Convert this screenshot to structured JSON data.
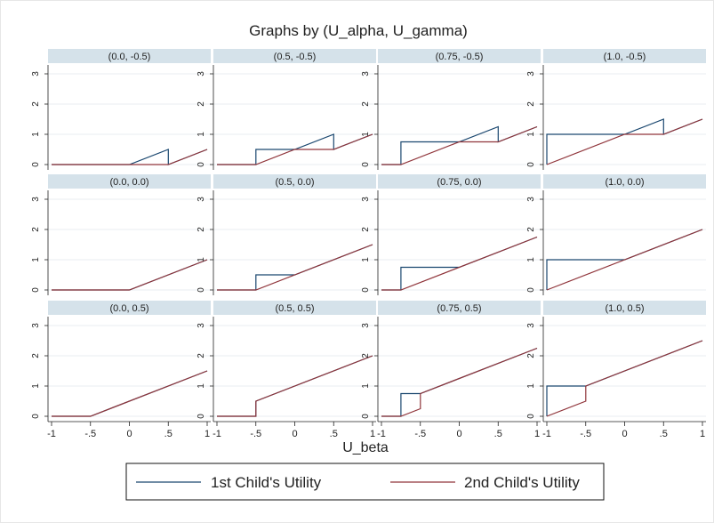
{
  "chart_data": {
    "type": "line",
    "title": "Graphs by (U_alpha, U_gamma)",
    "xlabel": "U_beta",
    "ylabel": "",
    "xlim": [
      -1,
      1
    ],
    "ylim": [
      0,
      3
    ],
    "x_ticks": [
      "-1",
      "-.5",
      "0",
      ".5",
      "1"
    ],
    "y_ticks": [
      "0",
      "1",
      "2",
      "3"
    ],
    "grid": true,
    "legend_position": "bottom",
    "colors": {
      "series1": "#1a476f",
      "series2": "#90353b",
      "strip": "#d5e2ea"
    },
    "series_names": [
      "1st Child's Utility",
      "2nd Child's Utility"
    ],
    "panels": [
      {
        "label": "(0.0, -0.5)",
        "series": [
          {
            "name": "1st Child's Utility",
            "points": [
              [
                -1,
                0
              ],
              [
                0,
                0
              ],
              [
                0.5,
                0.5
              ],
              [
                0.5,
                0
              ],
              [
                1,
                0.5
              ]
            ]
          },
          {
            "name": "2nd Child's Utility",
            "points": [
              [
                -1,
                0
              ],
              [
                0.5,
                0
              ],
              [
                1,
                0.5
              ]
            ]
          }
        ]
      },
      {
        "label": "(0.5, -0.5)",
        "series": [
          {
            "name": "1st Child's Utility",
            "points": [
              [
                -1,
                0
              ],
              [
                -0.5,
                0
              ],
              [
                -0.5,
                0.5
              ],
              [
                0,
                0.5
              ],
              [
                0.5,
                1
              ],
              [
                0.5,
                0.5
              ],
              [
                1,
                1
              ]
            ]
          },
          {
            "name": "2nd Child's Utility",
            "points": [
              [
                -1,
                0
              ],
              [
                -0.5,
                0
              ],
              [
                0,
                0.5
              ],
              [
                0.5,
                0.5
              ],
              [
                1,
                1
              ]
            ]
          }
        ]
      },
      {
        "label": "(0.75, -0.5)",
        "series": [
          {
            "name": "1st Child's Utility",
            "points": [
              [
                -1,
                0
              ],
              [
                -0.75,
                0
              ],
              [
                -0.75,
                0.75
              ],
              [
                0,
                0.75
              ],
              [
                0.5,
                1.25
              ],
              [
                0.5,
                0.75
              ],
              [
                1,
                1.25
              ]
            ]
          },
          {
            "name": "2nd Child's Utility",
            "points": [
              [
                -1,
                0
              ],
              [
                -0.75,
                0
              ],
              [
                0,
                0.75
              ],
              [
                0.5,
                0.75
              ],
              [
                1,
                1.25
              ]
            ]
          }
        ]
      },
      {
        "label": "(1.0, -0.5)",
        "series": [
          {
            "name": "1st Child's Utility",
            "points": [
              [
                -1,
                0
              ],
              [
                -1,
                1
              ],
              [
                0,
                1
              ],
              [
                0.5,
                1.5
              ],
              [
                0.5,
                1
              ],
              [
                1,
                1.5
              ]
            ]
          },
          {
            "name": "2nd Child's Utility",
            "points": [
              [
                -1,
                0
              ],
              [
                0,
                1
              ],
              [
                0.5,
                1
              ],
              [
                1,
                1.5
              ]
            ]
          }
        ]
      },
      {
        "label": "(0.0, 0.0)",
        "series": [
          {
            "name": "1st Child's Utility",
            "points": [
              [
                -1,
                0
              ],
              [
                0,
                0
              ],
              [
                1,
                1
              ]
            ]
          },
          {
            "name": "2nd Child's Utility",
            "points": [
              [
                -1,
                0
              ],
              [
                0,
                0
              ],
              [
                1,
                1
              ]
            ]
          }
        ]
      },
      {
        "label": "(0.5, 0.0)",
        "series": [
          {
            "name": "1st Child's Utility",
            "points": [
              [
                -1,
                0
              ],
              [
                -0.5,
                0
              ],
              [
                -0.5,
                0.5
              ],
              [
                0,
                0.5
              ],
              [
                1,
                1.5
              ]
            ]
          },
          {
            "name": "2nd Child's Utility",
            "points": [
              [
                -1,
                0
              ],
              [
                -0.5,
                0
              ],
              [
                1,
                1.5
              ]
            ]
          }
        ]
      },
      {
        "label": "(0.75, 0.0)",
        "series": [
          {
            "name": "1st Child's Utility",
            "points": [
              [
                -1,
                0
              ],
              [
                -0.75,
                0
              ],
              [
                -0.75,
                0.75
              ],
              [
                0,
                0.75
              ],
              [
                1,
                1.75
              ]
            ]
          },
          {
            "name": "2nd Child's Utility",
            "points": [
              [
                -1,
                0
              ],
              [
                -0.75,
                0
              ],
              [
                1,
                1.75
              ]
            ]
          }
        ]
      },
      {
        "label": "(1.0, 0.0)",
        "series": [
          {
            "name": "1st Child's Utility",
            "points": [
              [
                -1,
                0
              ],
              [
                -1,
                1
              ],
              [
                0,
                1
              ],
              [
                1,
                2
              ]
            ]
          },
          {
            "name": "2nd Child's Utility",
            "points": [
              [
                -1,
                0
              ],
              [
                1,
                2
              ]
            ]
          }
        ]
      },
      {
        "label": "(0.0, 0.5)",
        "series": [
          {
            "name": "1st Child's Utility",
            "points": [
              [
                -1,
                0
              ],
              [
                -0.5,
                0
              ],
              [
                1,
                1.5
              ]
            ]
          },
          {
            "name": "2nd Child's Utility",
            "points": [
              [
                -1,
                0
              ],
              [
                -0.5,
                0
              ],
              [
                1,
                1.5
              ]
            ]
          }
        ]
      },
      {
        "label": "(0.5, 0.5)",
        "series": [
          {
            "name": "1st Child's Utility",
            "points": [
              [
                -1,
                0
              ],
              [
                -0.5,
                0
              ],
              [
                -0.5,
                0.5
              ],
              [
                1,
                2
              ]
            ]
          },
          {
            "name": "2nd Child's Utility",
            "points": [
              [
                -1,
                0
              ],
              [
                -0.5,
                0
              ],
              [
                -0.5,
                0.5
              ],
              [
                1,
                2
              ]
            ]
          }
        ]
      },
      {
        "label": "(0.75, 0.5)",
        "series": [
          {
            "name": "1st Child's Utility",
            "points": [
              [
                -1,
                0
              ],
              [
                -0.75,
                0
              ],
              [
                -0.75,
                0.75
              ],
              [
                -0.5,
                0.75
              ],
              [
                1,
                2.25
              ]
            ]
          },
          {
            "name": "2nd Child's Utility",
            "points": [
              [
                -1,
                0
              ],
              [
                -0.75,
                0
              ],
              [
                -0.5,
                0.25
              ],
              [
                -0.5,
                0.75
              ],
              [
                1,
                2.25
              ]
            ]
          }
        ]
      },
      {
        "label": "(1.0, 0.5)",
        "series": [
          {
            "name": "1st Child's Utility",
            "points": [
              [
                -1,
                0
              ],
              [
                -1,
                1
              ],
              [
                -0.5,
                1
              ],
              [
                1,
                2.5
              ]
            ]
          },
          {
            "name": "2nd Child's Utility",
            "points": [
              [
                -1,
                0
              ],
              [
                -0.5,
                0.5
              ],
              [
                -0.5,
                1
              ],
              [
                1,
                2.5
              ]
            ]
          }
        ]
      }
    ]
  }
}
